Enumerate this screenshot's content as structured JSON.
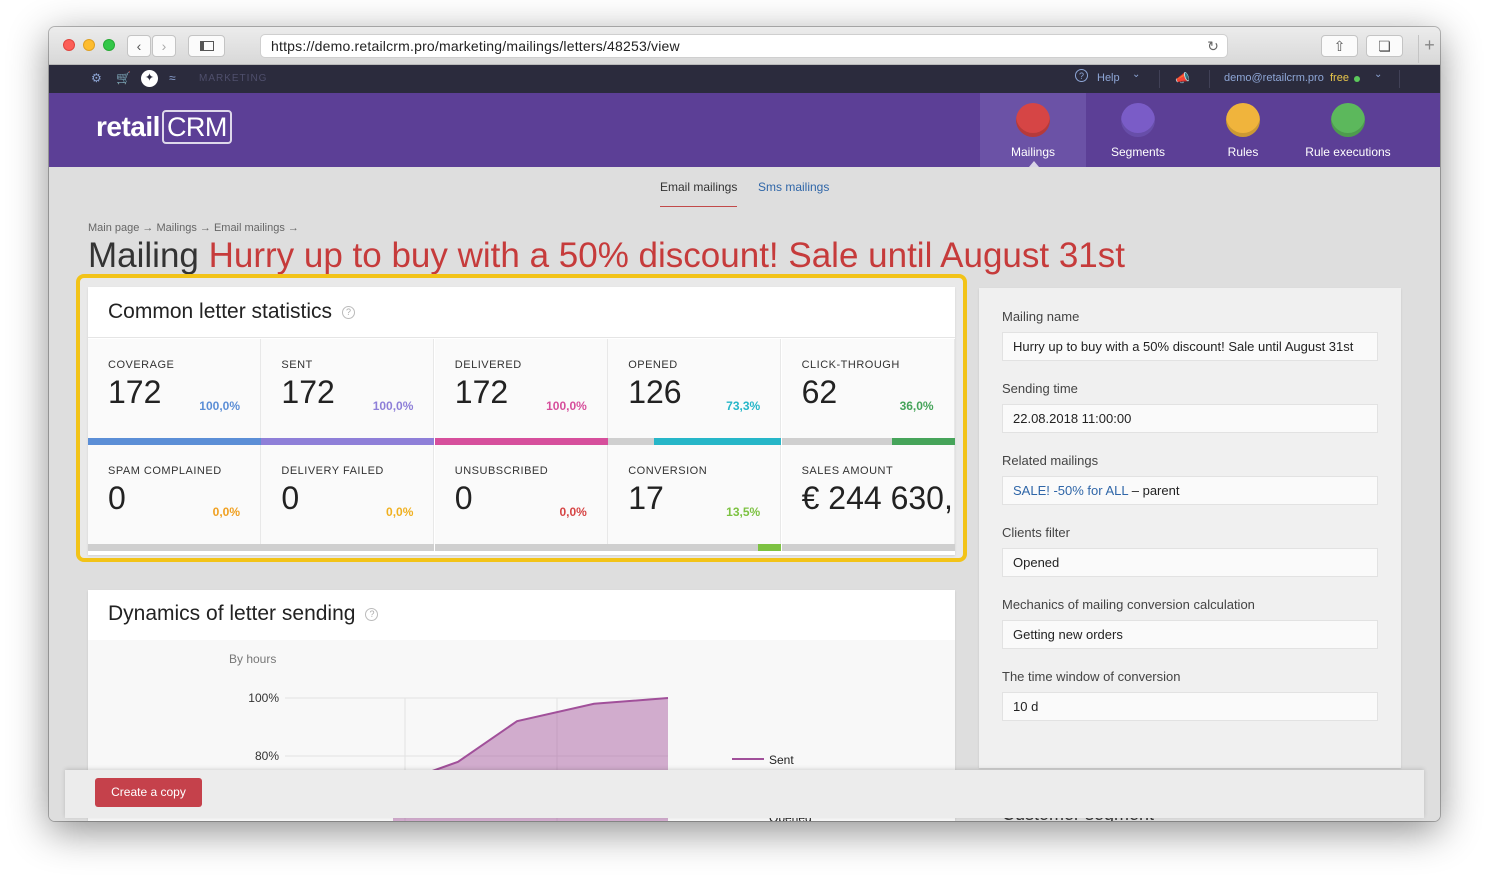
{
  "browser": {
    "url": "https://demo.retailcrm.pro/marketing/mailings/letters/48253/view"
  },
  "topbar": {
    "section": "MARKETING",
    "help": "Help",
    "user": "demo@retailcrm.pro",
    "plan": "free"
  },
  "logo": {
    "text_a": "retail",
    "text_b": "CRM"
  },
  "nav": [
    {
      "label": "Mailings",
      "active": true,
      "color": "#d64545"
    },
    {
      "label": "Segments",
      "active": false,
      "color": "#7a5cc7"
    },
    {
      "label": "Rules",
      "active": false,
      "color": "#f0b43c"
    },
    {
      "label": "Rule executions",
      "active": false,
      "color": "#5cb85c"
    }
  ],
  "subtabs": {
    "email": "Email mailings",
    "sms": "Sms mailings"
  },
  "breadcrumb": "Main page → Mailings → Email mailings →",
  "page_title": {
    "prefix": "Mailing",
    "name": "Hurry up to buy with a 50% discount! Sale until August 31st"
  },
  "stats": {
    "title": "Common letter statistics",
    "cells": [
      {
        "label": "COVERAGE",
        "value": "172",
        "pct": "100,0%",
        "color": "#5b8ed6",
        "fill": 1.0
      },
      {
        "label": "SENT",
        "value": "172",
        "pct": "100,0%",
        "color": "#8e7fd8",
        "fill": 1.0
      },
      {
        "label": "DELIVERED",
        "value": "172",
        "pct": "100,0%",
        "color": "#d64f9c",
        "fill": 1.0
      },
      {
        "label": "OPENED",
        "value": "126",
        "pct": "73,3%",
        "color": "#26b6c8",
        "fill": 0.733
      },
      {
        "label": "CLICK-THROUGH",
        "value": "62",
        "pct": "36,0%",
        "color": "#46a45a",
        "fill": 0.36
      },
      {
        "label": "SPAM COMPLAINED",
        "value": "0",
        "pct": "0,0%",
        "color": "#f0a020",
        "fill": 0.0
      },
      {
        "label": "DELIVERY FAILED",
        "value": "0",
        "pct": "0,0%",
        "color": "#f0b020",
        "fill": 0.0
      },
      {
        "label": "UNSUBSCRIBED",
        "value": "0",
        "pct": "0,0%",
        "color": "#d64545",
        "fill": 0.0
      },
      {
        "label": "CONVERSION",
        "value": "17",
        "pct": "13,5%",
        "color": "#7dc242",
        "fill": 0.135
      },
      {
        "label": "SALES AMOUNT",
        "value": "€ 244 630,",
        "pct": "",
        "color": "#cccccc",
        "fill": 0.0
      }
    ]
  },
  "dynamics": {
    "title": "Dynamics of letter sending",
    "subtitle": "By hours"
  },
  "chart_data": {
    "type": "area",
    "title": "Dynamics of letter sending",
    "xlabel": "",
    "ylabel": "",
    "y_tick_labels": [
      "100%",
      "80%"
    ],
    "series": [
      {
        "name": "Sent",
        "values": [
          0.7,
          0.78,
          0.92,
          0.98,
          1.0
        ],
        "color": "#a1509a"
      },
      {
        "name": "Opened",
        "values": [],
        "color": "#36b7c6"
      }
    ],
    "legend_position": "right"
  },
  "details": {
    "mailing_name_label": "Mailing name",
    "mailing_name": "Hurry up to buy with a 50% discount! Sale until August 31st",
    "sending_time_label": "Sending time",
    "sending_time": "22.08.2018 11:00:00",
    "related_label": "Related mailings",
    "related_link": "SALE! -50% for ALL",
    "related_suffix": " – parent",
    "filter_label": "Clients filter",
    "filter": "Opened",
    "mechanics_label": "Mechanics of mailing conversion calculation",
    "mechanics": "Getting new orders",
    "window_label": "The time window of conversion",
    "window": "10 d",
    "segment_label": "Customer segment"
  },
  "actions": {
    "create_copy": "Create a copy"
  }
}
